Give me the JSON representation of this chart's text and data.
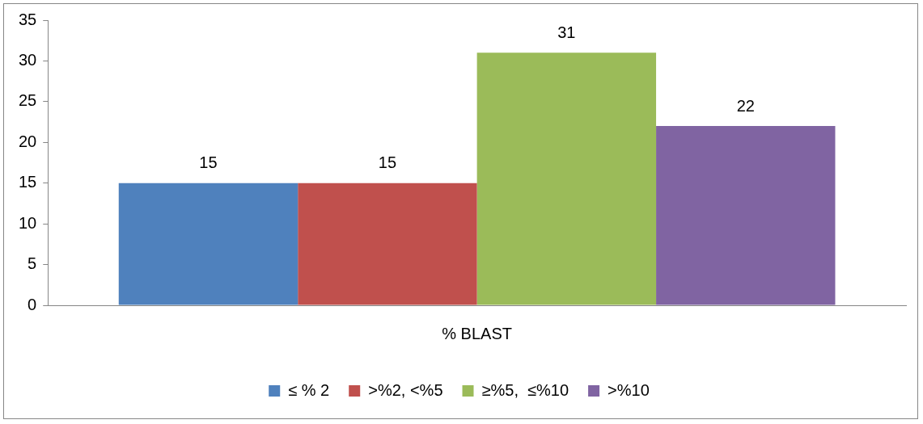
{
  "chart_data": {
    "type": "bar",
    "categories": [
      "% BLAST"
    ],
    "series": [
      {
        "name": "≤ % 2",
        "color": "#4f81bd",
        "values": [
          15
        ]
      },
      {
        "name": ">%2, <%5",
        "color": "#c0504d",
        "values": [
          15
        ]
      },
      {
        "name": "≥%5,  ≤%10",
        "color": "#9bbb59",
        "values": [
          31
        ]
      },
      {
        "name": ">%10",
        "color": "#8064a2",
        "values": [
          22
        ]
      }
    ],
    "ylim": [
      0,
      35
    ],
    "yticks": [
      0,
      5,
      10,
      15,
      20,
      25,
      30,
      35
    ],
    "grid": false,
    "legend": "bottom",
    "data_labels": true
  }
}
